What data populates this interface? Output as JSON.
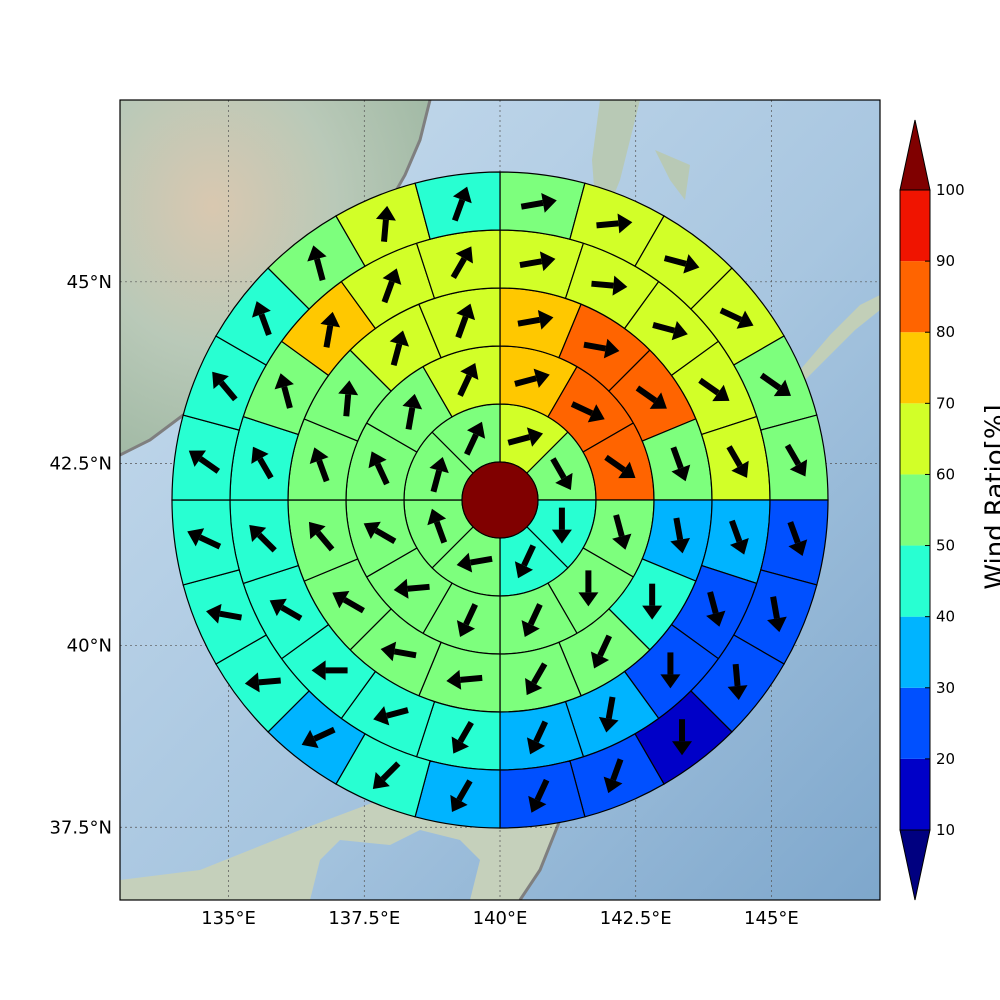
{
  "chart_data": {
    "type": "heatmap",
    "title": "",
    "map_extent": {
      "lon": [
        133.0,
        147.0
      ],
      "lat": [
        36.5,
        47.5
      ]
    },
    "center": {
      "lon": 140.0,
      "lat": 42.0
    },
    "xticks": [
      {
        "value": 135.0,
        "label": "135°E"
      },
      {
        "value": 137.5,
        "label": "137.5°E"
      },
      {
        "value": 140.0,
        "label": "140°E"
      },
      {
        "value": 142.5,
        "label": "142.5°E"
      },
      {
        "value": 145.0,
        "label": "145°E"
      }
    ],
    "yticks": [
      {
        "value": 37.5,
        "label": "37.5°N"
      },
      {
        "value": 40.0,
        "label": "40°N"
      },
      {
        "value": 42.5,
        "label": "42.5°N"
      },
      {
        "value": 45.0,
        "label": "45°N"
      }
    ],
    "grid": true,
    "colorbar": {
      "label": "Wind Ratio[%]",
      "levels": [
        10,
        20,
        30,
        40,
        50,
        60,
        70,
        80,
        90,
        100
      ],
      "level_labels": [
        "10",
        "20",
        "30",
        "40",
        "50",
        "60",
        "70",
        "80",
        "90",
        "100"
      ],
      "colors": [
        "#0000c8",
        "#0050ff",
        "#00b4ff",
        "#28ffd2",
        "#7dff7d",
        "#d2ff28",
        "#ffc800",
        "#ff6400",
        "#f01400"
      ],
      "under_color": "#000080",
      "over_color": "#800000",
      "extend": "both"
    },
    "center_value": 100,
    "rings": [
      {
        "ring": 1,
        "sectors": 8,
        "ratio": [
          60,
          55,
          45,
          45,
          50,
          50,
          50,
          50
        ],
        "arrow_dir_deg": [
          75,
          150,
          180,
          205,
          260,
          340,
          15,
          25
        ]
      },
      {
        "ring": 2,
        "sectors": 12,
        "ratio": [
          75,
          85,
          85,
          55,
          55,
          50,
          50,
          50,
          55,
          55,
          55,
          65
        ],
        "arrow_dir_deg": [
          75,
          115,
          125,
          165,
          180,
          205,
          205,
          265,
          300,
          335,
          10,
          25
        ]
      },
      {
        "ring": 3,
        "sectors": 16,
        "ratio": [
          70,
          80,
          80,
          55,
          35,
          40,
          50,
          50,
          50,
          55,
          55,
          55,
          50,
          50,
          60,
          60
        ],
        "arrow_dir_deg": [
          80,
          100,
          125,
          160,
          170,
          180,
          205,
          210,
          265,
          280,
          300,
          320,
          340,
          5,
          15,
          20
        ]
      },
      {
        "ring": 4,
        "sectors": 20,
        "ratio": [
          65,
          60,
          65,
          65,
          60,
          35,
          25,
          20,
          30,
          30,
          45,
          45,
          45,
          45,
          45,
          45,
          50,
          70,
          60,
          60
        ],
        "arrow_dir_deg": [
          80,
          95,
          105,
          125,
          150,
          160,
          165,
          180,
          190,
          205,
          210,
          255,
          270,
          300,
          315,
          330,
          345,
          10,
          20,
          30
        ]
      },
      {
        "ring": 5,
        "sectors": 24,
        "ratio": [
          55,
          60,
          60,
          60,
          55,
          50,
          20,
          20,
          20,
          15,
          20,
          20,
          30,
          40,
          30,
          45,
          45,
          45,
          45,
          45,
          45,
          55,
          60,
          45
        ],
        "arrow_dir_deg": [
          80,
          85,
          105,
          115,
          125,
          150,
          160,
          170,
          175,
          180,
          200,
          205,
          210,
          225,
          245,
          265,
          280,
          295,
          305,
          320,
          340,
          345,
          5,
          20
        ]
      }
    ]
  }
}
